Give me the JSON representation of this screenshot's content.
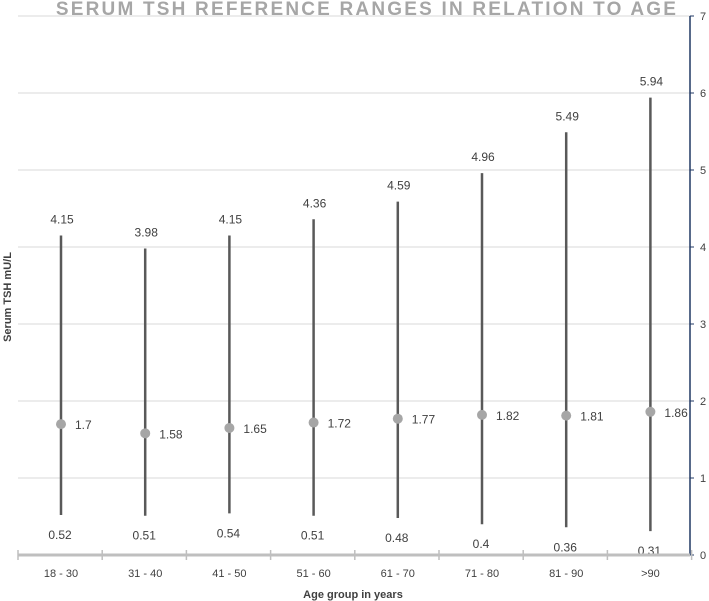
{
  "chart_data": {
    "type": "range",
    "title": "SERUM TSH REFERENCE RANGES IN RELATION TO AGE",
    "xlabel": "Age group in years",
    "ylabel": "Serum TSH mU/L",
    "ylim": [
      0,
      7
    ],
    "yticks": [
      "0",
      "1",
      "2",
      "3",
      "4",
      "5",
      "6",
      "7"
    ],
    "y_axis_side": "right",
    "categories": [
      "18 - 30",
      "31 - 40",
      "41 - 50",
      "51 - 60",
      "61 - 70",
      "71 - 80",
      "81 - 90",
      ">90"
    ],
    "high": [
      4.15,
      3.98,
      4.15,
      4.36,
      4.59,
      4.96,
      5.49,
      5.94
    ],
    "median": [
      1.7,
      1.58,
      1.65,
      1.72,
      1.77,
      1.82,
      1.81,
      1.86
    ],
    "low": [
      0.52,
      0.51,
      0.54,
      0.51,
      0.48,
      0.4,
      0.36,
      0.31
    ],
    "high_labels": [
      "4.15",
      "3.98",
      "4.15",
      "4.36",
      "4.59",
      "4.96",
      "5.49",
      "5.94"
    ],
    "median_labels": [
      "1.7",
      "1.58",
      "1.65",
      "1.72",
      "1.77",
      "1.82",
      "1.81",
      "1.86"
    ],
    "low_labels": [
      "0.52",
      "0.51",
      "0.54",
      "0.51",
      "0.48",
      "0.4",
      "0.36",
      "0.31"
    ],
    "grid": true,
    "colors": {
      "range_line": "#595959",
      "median_marker": "#a6a6a6",
      "grid": "#d9d9d9",
      "axis": "#203864",
      "text": "#404040",
      "title": "#a6a6a6"
    }
  }
}
